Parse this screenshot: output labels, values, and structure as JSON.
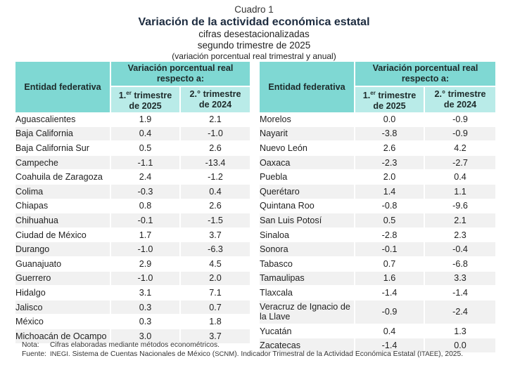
{
  "header": {
    "cuadro": "Cuadro 1",
    "title": "Variación de la actividad económica estatal",
    "subtitle1": "cifras desestacionalizadas",
    "subtitle2": "segundo trimestre de 2025",
    "subtitle3": "(variación porcentual real trimestral y anual)"
  },
  "table_headers": {
    "entity": "Entidad federativa",
    "group": "Variación porcentual real respecto a:",
    "col1_a": "1.",
    "col1_sup": "er",
    "col1_b": " trimestre",
    "col1_c": "de 2025",
    "col2_a": "2.° trimestre",
    "col2_b": "de 2024"
  },
  "left_rows": [
    {
      "name": "Aguascalientes",
      "q1_2025": "1.9",
      "q2_2024": "2.1"
    },
    {
      "name": "Baja California",
      "q1_2025": "0.4",
      "q2_2024": "-1.0"
    },
    {
      "name": "Baja California Sur",
      "q1_2025": "0.5",
      "q2_2024": "2.6"
    },
    {
      "name": "Campeche",
      "q1_2025": "-1.1",
      "q2_2024": "-13.4"
    },
    {
      "name": "Coahuila de Zaragoza",
      "q1_2025": "2.4",
      "q2_2024": "-1.2"
    },
    {
      "name": "Colima",
      "q1_2025": "-0.3",
      "q2_2024": "0.4"
    },
    {
      "name": "Chiapas",
      "q1_2025": "0.8",
      "q2_2024": "2.6"
    },
    {
      "name": "Chihuahua",
      "q1_2025": "-0.1",
      "q2_2024": "-1.5"
    },
    {
      "name": "Ciudad de México",
      "q1_2025": "1.7",
      "q2_2024": "3.7"
    },
    {
      "name": "Durango",
      "q1_2025": "-1.0",
      "q2_2024": "-6.3"
    },
    {
      "name": "Guanajuato",
      "q1_2025": "2.9",
      "q2_2024": "4.5"
    },
    {
      "name": "Guerrero",
      "q1_2025": "-1.0",
      "q2_2024": "2.0"
    },
    {
      "name": "Hidalgo",
      "q1_2025": "3.1",
      "q2_2024": "7.1"
    },
    {
      "name": "Jalisco",
      "q1_2025": "0.3",
      "q2_2024": "0.7"
    },
    {
      "name": "México",
      "q1_2025": "0.3",
      "q2_2024": "1.8"
    },
    {
      "name": "Michoacán de Ocampo",
      "q1_2025": "3.0",
      "q2_2024": "3.7"
    }
  ],
  "right_rows": [
    {
      "name": "Morelos",
      "q1_2025": "0.0",
      "q2_2024": "-0.9"
    },
    {
      "name": "Nayarit",
      "q1_2025": "-3.8",
      "q2_2024": "-0.9"
    },
    {
      "name": "Nuevo León",
      "q1_2025": "2.6",
      "q2_2024": "4.2"
    },
    {
      "name": "Oaxaca",
      "q1_2025": "-2.3",
      "q2_2024": "-2.7"
    },
    {
      "name": "Puebla",
      "q1_2025": "2.0",
      "q2_2024": "0.4"
    },
    {
      "name": "Querétaro",
      "q1_2025": "1.4",
      "q2_2024": "1.1"
    },
    {
      "name": "Quintana Roo",
      "q1_2025": "-0.8",
      "q2_2024": "-9.6"
    },
    {
      "name": "San Luis Potosí",
      "q1_2025": "0.5",
      "q2_2024": "2.1"
    },
    {
      "name": "Sinaloa",
      "q1_2025": "-2.8",
      "q2_2024": "2.3"
    },
    {
      "name": "Sonora",
      "q1_2025": "-0.1",
      "q2_2024": "-0.4"
    },
    {
      "name": "Tabasco",
      "q1_2025": "0.7",
      "q2_2024": "-6.8"
    },
    {
      "name": "Tamaulipas",
      "q1_2025": "1.6",
      "q2_2024": "3.3"
    },
    {
      "name": "Tlaxcala",
      "q1_2025": "-1.4",
      "q2_2024": "-1.4"
    },
    {
      "name": "Veracruz de Ignacio de la Llave",
      "q1_2025": "-0.9",
      "q2_2024": "-2.4"
    },
    {
      "name": "Yucatán",
      "q1_2025": "0.4",
      "q2_2024": "1.3"
    },
    {
      "name": "Zacatecas",
      "q1_2025": "-1.4",
      "q2_2024": "0.0"
    }
  ],
  "notes": {
    "nota_label": "Nota:",
    "nota_text": "Cifras elaboradas mediante métodos econométricos.",
    "fuente_label": "Fuente:",
    "fuente_inegi": "INEGI",
    "fuente_text1": ". Sistema de Cuentas Nacionales de México (",
    "fuente_scnm": "SCNM",
    "fuente_text2": "). Indicador Trimestral de la Actividad Económica Estatal (",
    "fuente_itaee": "ITAEE",
    "fuente_text3": "), 2025."
  },
  "colors": {
    "header_dark": "#7fd8d3",
    "header_light": "#b9ebe8",
    "row_band": "#f1f1f1",
    "title": "#1c2b3f"
  }
}
